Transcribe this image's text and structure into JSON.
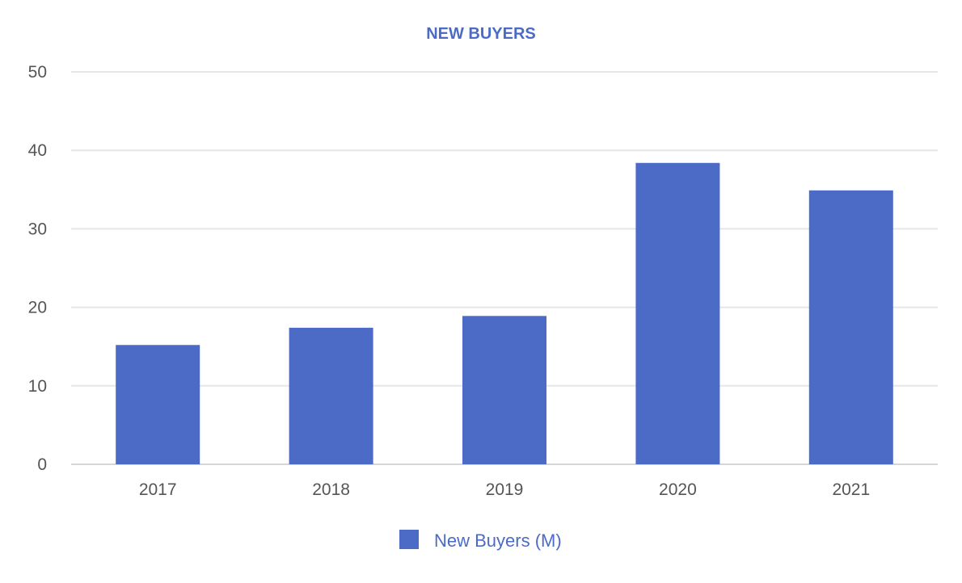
{
  "colors": {
    "accent": "#4c6bc6",
    "grid": "#e6e6e6",
    "axis": "#d6d6d6",
    "tick_text": "#555555"
  },
  "chart_data": {
    "type": "bar",
    "title": "NEW BUYERS",
    "xlabel": "",
    "ylabel": "",
    "categories": [
      "2017",
      "2018",
      "2019",
      "2020",
      "2021"
    ],
    "series": [
      {
        "name": "New Buyers (M)",
        "values": [
          15.2,
          17.4,
          18.9,
          38.4,
          34.9
        ]
      }
    ],
    "ylim": [
      0,
      50
    ],
    "y_ticks": [
      "0",
      "10",
      "20",
      "30",
      "40",
      "50"
    ],
    "grid": true,
    "legend_position": "bottom-center"
  }
}
